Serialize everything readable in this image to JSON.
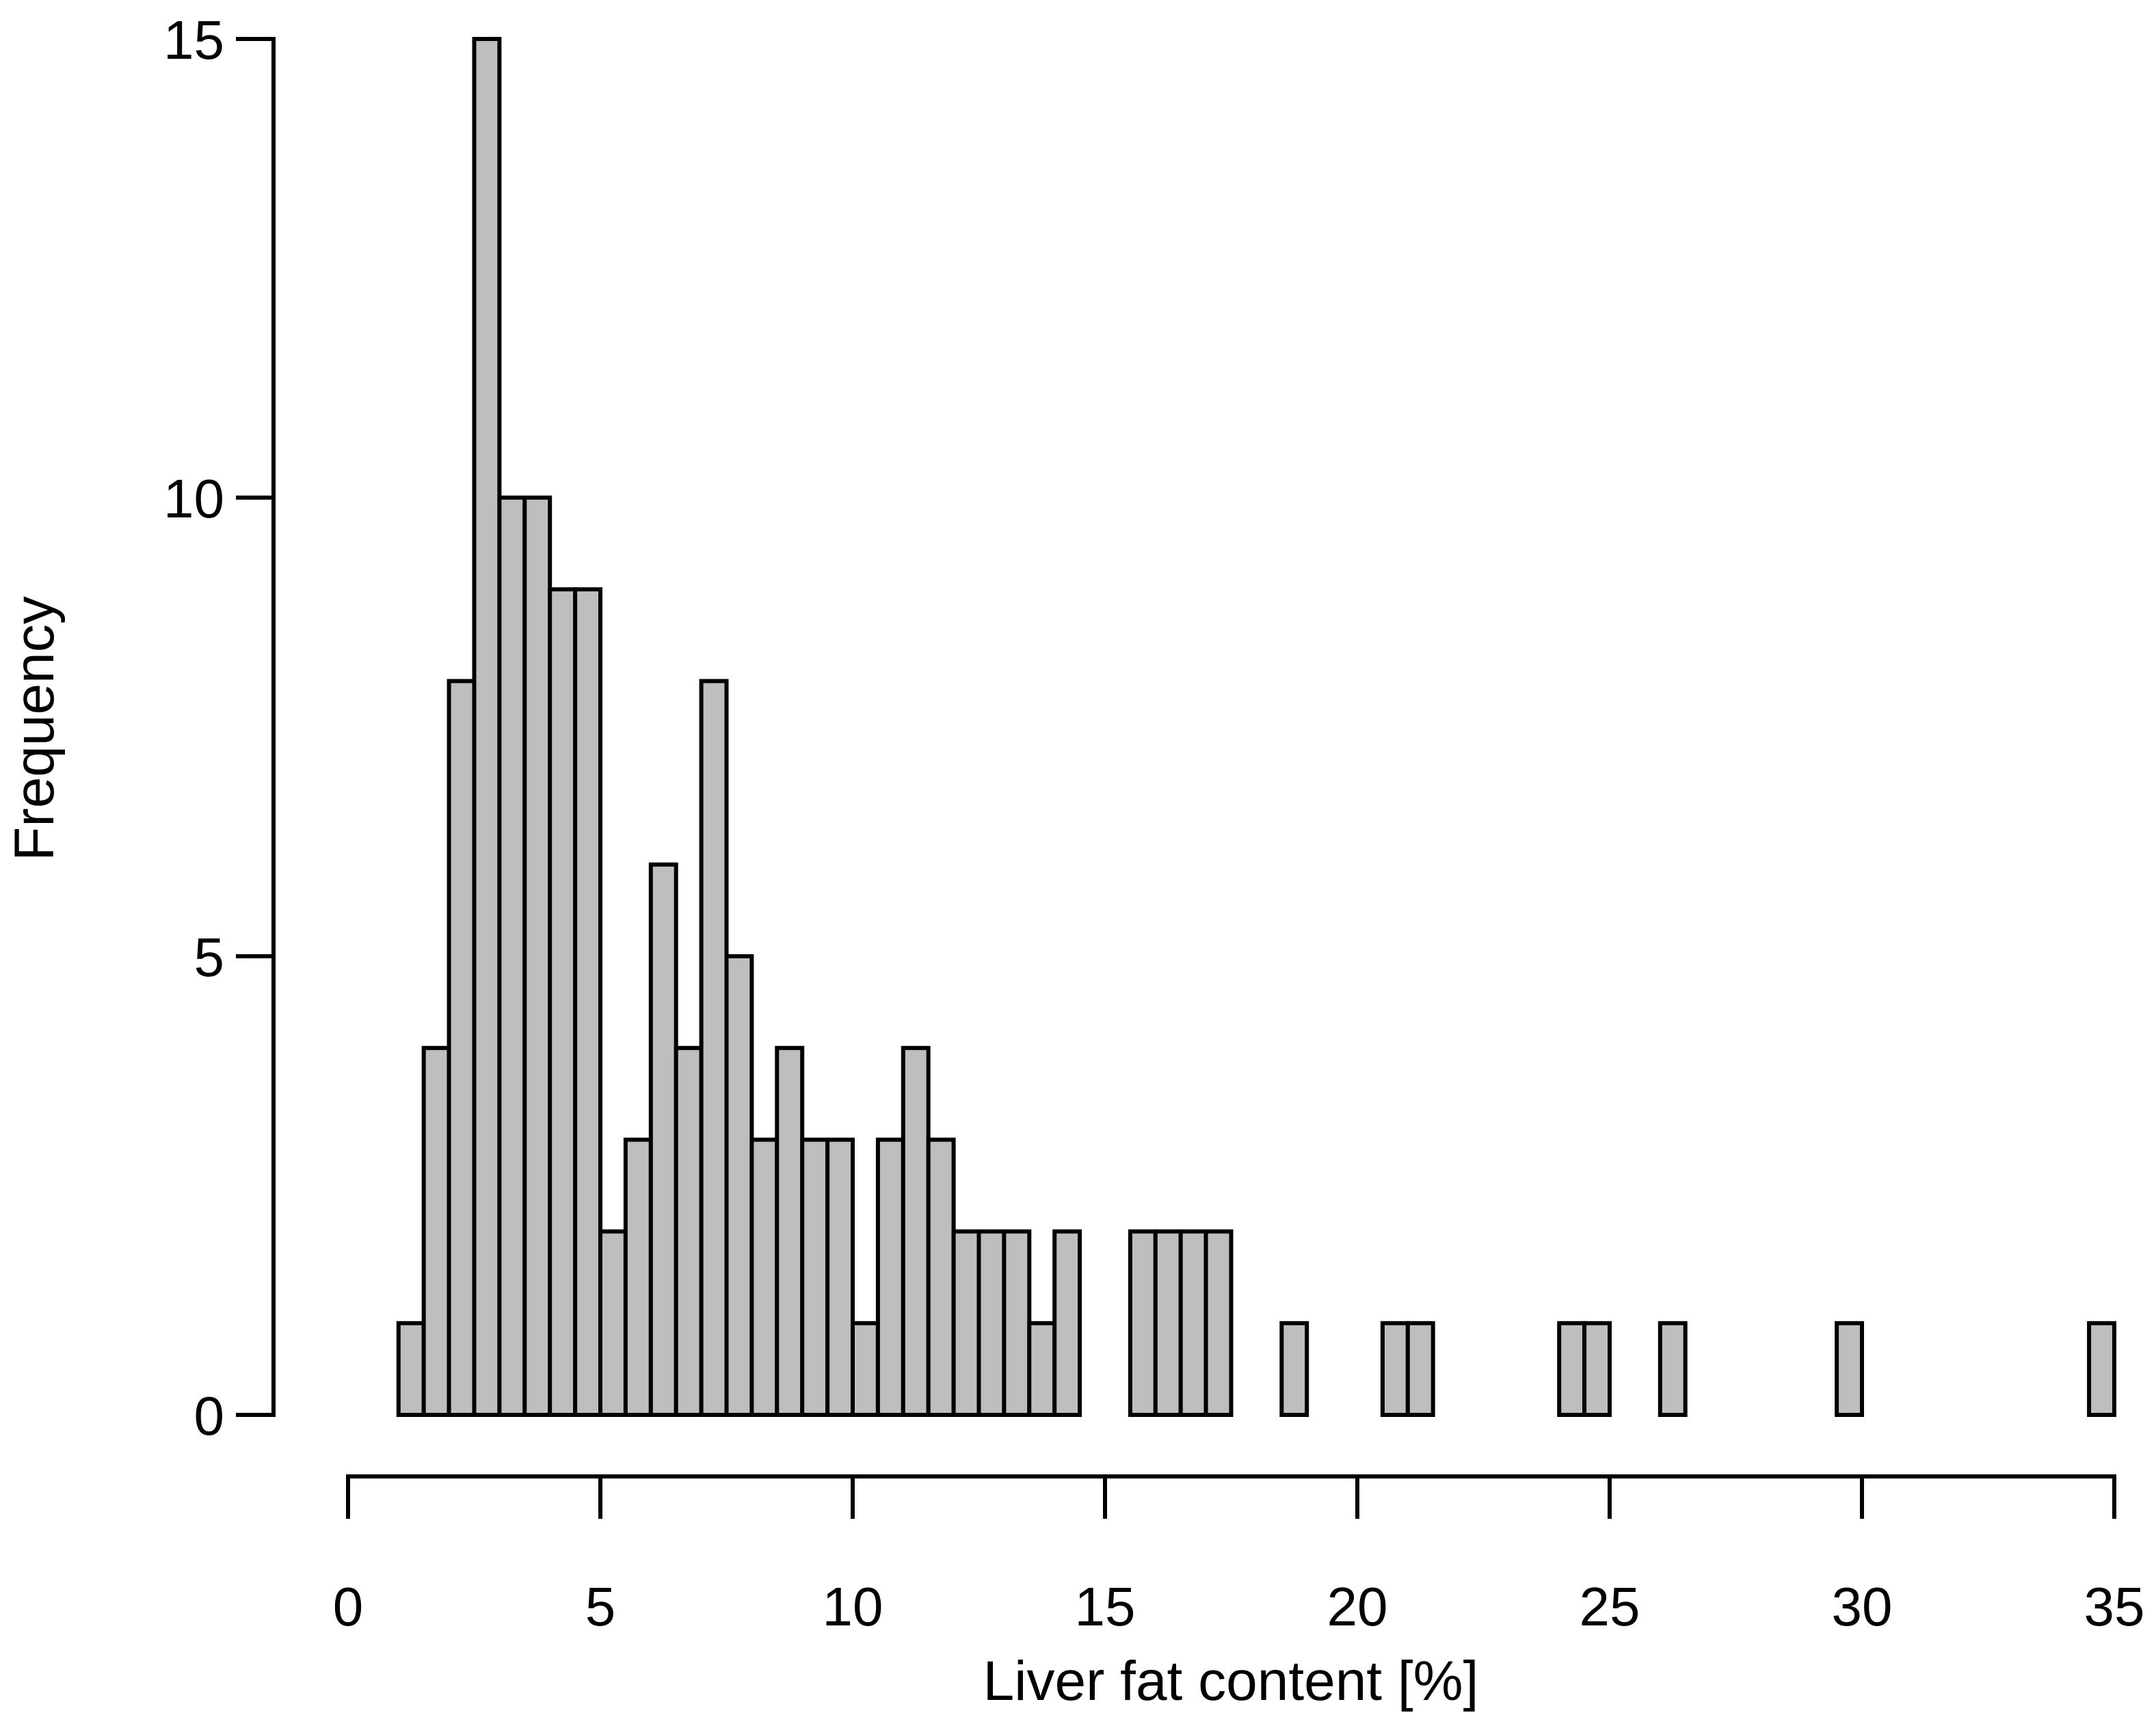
{
  "chart_data": {
    "type": "bar",
    "subtype": "histogram",
    "title": "",
    "xlabel": "Liver fat content [%]",
    "ylabel": "Frequency",
    "bin_start": 1.0,
    "bin_width": 0.5,
    "counts": [
      1,
      4,
      8,
      15,
      10,
      10,
      9,
      9,
      2,
      3,
      6,
      4,
      8,
      5,
      3,
      4,
      3,
      3,
      1,
      3,
      4,
      3,
      2,
      2,
      2,
      1,
      2,
      0,
      0,
      2,
      2,
      2,
      2,
      0,
      0,
      1,
      0,
      0,
      0,
      1,
      1,
      0,
      0,
      0,
      0,
      0,
      1,
      1,
      0,
      0,
      1,
      0,
      0,
      0,
      0,
      0,
      0,
      1,
      0,
      0,
      0,
      0,
      0,
      0,
      0,
      0,
      0,
      1
    ],
    "x_ticks": [
      0,
      5,
      10,
      15,
      20,
      25,
      30,
      35
    ],
    "x_tick_labels": [
      "0",
      "5",
      "10",
      "15",
      "20",
      "25",
      "30",
      "35"
    ],
    "y_ticks": [
      0,
      5,
      10,
      15
    ],
    "y_tick_labels": [
      "0",
      "5",
      "10",
      "15"
    ],
    "xlim": [
      0,
      35
    ],
    "ylim": [
      0,
      15
    ],
    "grid": false,
    "legend": false,
    "bar_fill": "#bebebe",
    "bar_stroke": "#000000",
    "axis_color": "#000000",
    "background": "#ffffff"
  }
}
